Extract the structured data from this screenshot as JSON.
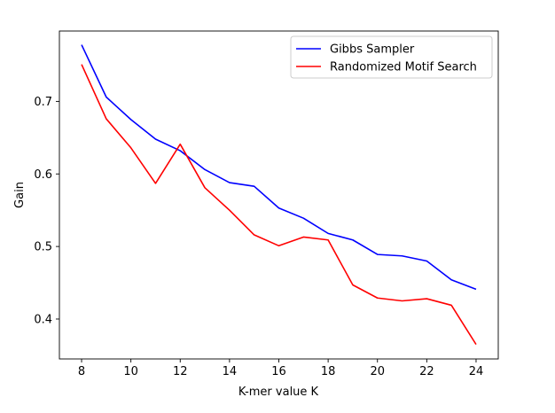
{
  "chart_data": {
    "type": "line",
    "title": "",
    "xlabel": "K-mer value K",
    "ylabel": "Gain",
    "x": [
      8,
      9,
      10,
      11,
      12,
      13,
      14,
      15,
      16,
      17,
      18,
      19,
      20,
      21,
      22,
      23,
      24
    ],
    "xlim": [
      7.1,
      24.9
    ],
    "ylim": [
      0.345,
      0.797
    ],
    "xticks": [
      8,
      10,
      12,
      14,
      16,
      18,
      20,
      22,
      24
    ],
    "yticks": [
      0.4,
      0.5,
      0.6,
      0.7
    ],
    "ytick_labels": [
      "0.4",
      "0.5",
      "0.6",
      "0.7"
    ],
    "grid": false,
    "legend_position": "top-right",
    "series": [
      {
        "name": "Gibbs Sampler",
        "color": "#0000ff",
        "values": [
          0.778,
          0.706,
          0.675,
          0.648,
          0.632,
          0.606,
          0.588,
          0.583,
          0.553,
          0.539,
          0.518,
          0.509,
          0.489,
          0.487,
          0.48,
          0.454,
          0.441
        ]
      },
      {
        "name": "Randomized Motif Search",
        "color": "#ff0000",
        "values": [
          0.751,
          0.676,
          0.636,
          0.587,
          0.641,
          0.581,
          0.55,
          0.516,
          0.501,
          0.513,
          0.509,
          0.447,
          0.429,
          0.425,
          0.428,
          0.419,
          0.365
        ]
      }
    ]
  }
}
